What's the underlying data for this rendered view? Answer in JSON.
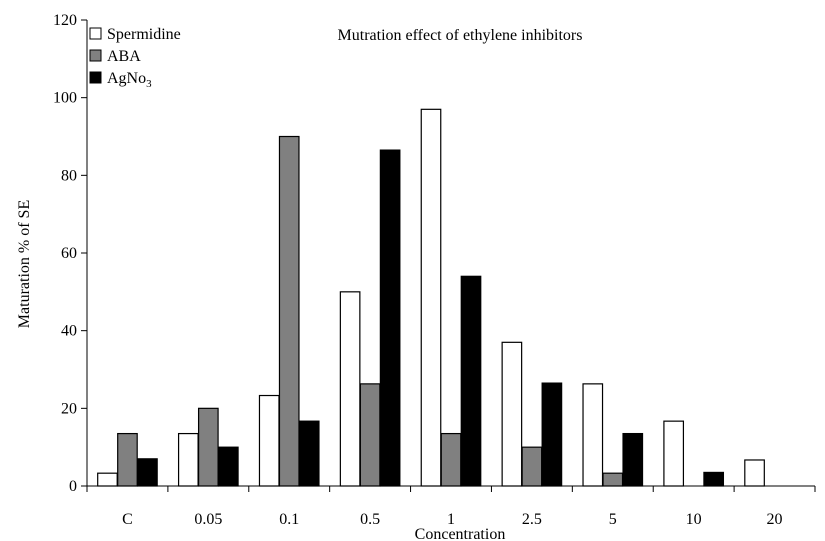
{
  "chart_data": {
    "type": "bar",
    "title": "Mutration effect of ethylene inhibitors",
    "xlabel": "Concentration",
    "ylabel": "Maturation % of SE",
    "ylim": [
      0,
      120
    ],
    "yticks": [
      0,
      20,
      40,
      60,
      80,
      100,
      120
    ],
    "categories": [
      "C",
      "0.05",
      "0.1",
      "0.5",
      "1",
      "2.5",
      "5",
      "10",
      "20"
    ],
    "series": [
      {
        "name": "Spermidine",
        "color": "#ffffff",
        "values": [
          3.3,
          13.5,
          23.3,
          50,
          97,
          37,
          26.3,
          16.7,
          6.7
        ]
      },
      {
        "name": "ABA",
        "color": "#808080",
        "values": [
          13.5,
          20,
          90,
          26.3,
          13.5,
          10,
          3.3,
          0,
          0
        ]
      },
      {
        "name": "AgNo3",
        "name_base": "AgNo",
        "name_sub": "3",
        "color": "#000000",
        "values": [
          7,
          10,
          16.7,
          86.5,
          54,
          26.5,
          13.5,
          3.5,
          0
        ]
      }
    ],
    "legend_position": "top-left",
    "grid": false
  }
}
